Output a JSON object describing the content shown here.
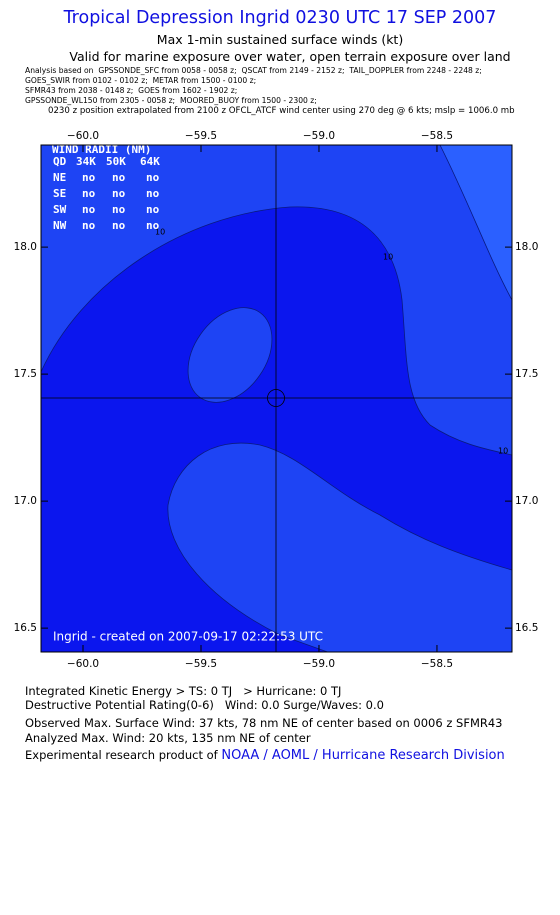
{
  "title": "Tropical Depression Ingrid 0230 UTC 17 SEP 2007",
  "subtitle": "Max 1-min sustained surface winds (kt)",
  "valid_note": "Valid for marine exposure over water, open terrain exposure over land",
  "analysis_notes": [
    "Analysis based on  GPSSONDE_SFC from 0058 - 0058 z;  QSCAT from 2149 - 2152 z;  TAIL_DOPPLER from 2248 - 2248 z;",
    "GOES_SWIR from 0102 - 0102 z;  METAR from 1500 - 0100 z;",
    "SFMR43 from 2038 - 0148 z;  GOES from 1602 - 1902 z;",
    "GPSSONDE_WL150 from 2305 - 0058 z;  MOORED_BUOY from 1500 - 2300 z;"
  ],
  "position_note": "0230 z position extrapolated from 2100 z OFCL_ATCF wind center using 270 deg @ 6 kts; mslp = 1006.0 mb",
  "map": {
    "xlim": [
      -60.178,
      -58.182
    ],
    "ylim": [
      16.406,
      18.402
    ],
    "xticks": [
      {
        "value": -60,
        "label": "−60.0"
      },
      {
        "value": -59.5,
        "label": "−59.5"
      },
      {
        "value": -59,
        "label": "−59.0"
      },
      {
        "value": -58.5,
        "label": "−58.5"
      }
    ],
    "yticks": [
      {
        "value": 18,
        "label": "18.0"
      },
      {
        "value": 17.5,
        "label": "17.5"
      },
      {
        "value": 17,
        "label": "17.0"
      },
      {
        "value": 16.5,
        "label": "16.5"
      }
    ],
    "contour_labels": [
      "10",
      "10",
      "10"
    ],
    "wind_radii": {
      "title": "WIND RADII (NM)",
      "header": [
        "QD",
        "34K",
        "50K",
        "64K"
      ],
      "rows": [
        [
          "NE",
          "no",
          "no",
          "no"
        ],
        [
          "SE",
          "no",
          "no",
          "no"
        ],
        [
          "SW",
          "no",
          "no",
          "no"
        ],
        [
          "NW",
          "no",
          "no",
          "no"
        ]
      ]
    },
    "footer": "Ingrid - created on 2007-09-17 02:22:53 UTC"
  },
  "summary": [
    "Integrated Kinetic Energy > TS: 0 TJ   > Hurricane: 0 TJ",
    "Destructive Potential Rating(0-6)   Wind: 0.0 Surge/Waves: 0.0",
    "Observed Max. Surface Wind: 37 kts, 78 nm NE of center based on 0006 z SFMR43",
    "Analyzed Max. Wind: 20 kts, 135 nm NE of center"
  ],
  "credit": {
    "text": "Experimental research product of",
    "link": "NOAA / AOML / Hurricane Research Division"
  }
}
